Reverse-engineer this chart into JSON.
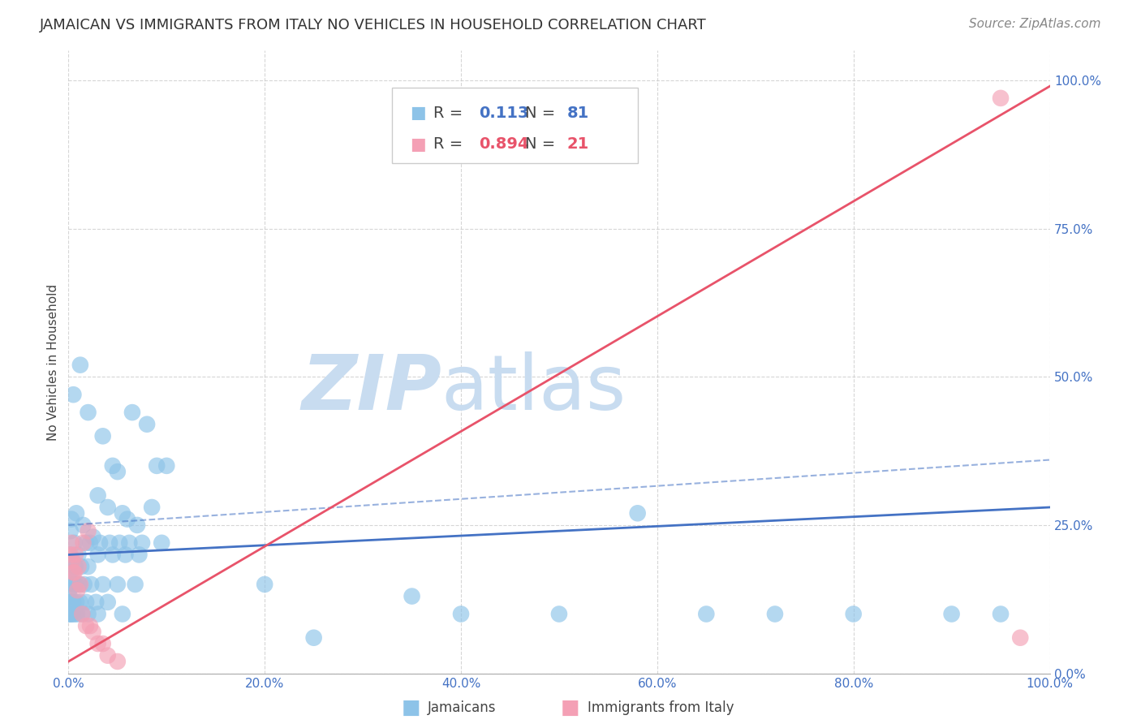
{
  "title": "JAMAICAN VS IMMIGRANTS FROM ITALY NO VEHICLES IN HOUSEHOLD CORRELATION CHART",
  "source": "Source: ZipAtlas.com",
  "ylabel": "No Vehicles in Household",
  "ytick_labels": [
    "0.0%",
    "25.0%",
    "50.0%",
    "75.0%",
    "100.0%"
  ],
  "ytick_values": [
    0,
    25,
    50,
    75,
    100
  ],
  "xtick_values": [
    0,
    20,
    40,
    60,
    80,
    100
  ],
  "xtick_labels": [
    "0.0%",
    "20.0%",
    "40.0%",
    "60.0%",
    "80.0%",
    "100.0%"
  ],
  "legend_v1": "0.113",
  "legend_v2": "0.894",
  "legend_n1": "81",
  "legend_n2": "21",
  "blue_color": "#8DC3E8",
  "blue_line_color": "#4472C4",
  "pink_color": "#F4A0B5",
  "pink_line_color": "#E8536A",
  "tick_color": "#4472C4",
  "watermark_color": "#C8DCF0",
  "title_fontsize": 13,
  "source_fontsize": 11,
  "axis_label_fontsize": 11,
  "tick_fontsize": 11,
  "legend_fontsize": 14,
  "background_color": "#FFFFFF",
  "grid_color": "#CCCCCC",
  "blue_scatter_x": [
    0.5,
    1.2,
    2.0,
    3.5,
    4.5,
    5.0,
    6.5,
    8.0,
    9.0,
    10.0,
    0.3,
    0.8,
    1.5,
    2.5,
    3.0,
    4.0,
    5.5,
    6.0,
    7.0,
    8.5,
    0.2,
    0.6,
    1.0,
    1.8,
    2.2,
    3.2,
    4.2,
    5.2,
    6.2,
    7.5,
    0.1,
    0.4,
    0.7,
    1.3,
    2.0,
    3.0,
    4.5,
    5.8,
    7.2,
    9.5,
    0.15,
    0.35,
    0.55,
    0.75,
    1.1,
    1.6,
    2.3,
    3.5,
    5.0,
    6.8,
    0.05,
    0.1,
    0.2,
    0.3,
    0.5,
    0.8,
    1.2,
    1.8,
    2.8,
    4.0,
    0.08,
    0.18,
    0.28,
    0.45,
    0.65,
    0.9,
    1.4,
    2.0,
    3.0,
    5.5,
    20.0,
    25.0,
    35.0,
    40.0,
    50.0,
    58.0,
    65.0,
    72.0,
    80.0,
    90.0,
    95.0
  ],
  "blue_scatter_y": [
    47.0,
    52.0,
    44.0,
    40.0,
    35.0,
    34.0,
    44.0,
    42.0,
    35.0,
    35.0,
    26.0,
    27.0,
    25.0,
    23.0,
    30.0,
    28.0,
    27.0,
    26.0,
    25.0,
    28.0,
    24.0,
    22.0,
    20.0,
    22.0,
    22.0,
    22.0,
    22.0,
    22.0,
    22.0,
    22.0,
    20.0,
    19.0,
    18.0,
    18.0,
    18.0,
    20.0,
    20.0,
    20.0,
    20.0,
    22.0,
    17.0,
    16.0,
    15.0,
    15.0,
    15.0,
    15.0,
    15.0,
    15.0,
    15.0,
    15.0,
    14.0,
    13.0,
    12.0,
    12.0,
    12.0,
    12.0,
    12.0,
    12.0,
    12.0,
    12.0,
    10.0,
    10.0,
    10.0,
    10.0,
    10.0,
    10.0,
    10.0,
    10.0,
    10.0,
    10.0,
    15.0,
    6.0,
    13.0,
    10.0,
    10.0,
    27.0,
    10.0,
    10.0,
    10.0,
    10.0,
    10.0
  ],
  "pink_scatter_x": [
    0.3,
    0.7,
    1.0,
    1.5,
    2.0,
    2.5,
    3.0,
    0.5,
    1.2,
    1.8,
    0.2,
    0.4,
    0.6,
    0.9,
    1.4,
    2.2,
    3.5,
    4.0,
    5.0,
    95.0,
    97.0
  ],
  "pink_scatter_y": [
    22.0,
    20.0,
    18.0,
    22.0,
    24.0,
    7.0,
    5.0,
    17.0,
    15.0,
    8.0,
    20.0,
    19.0,
    17.0,
    14.0,
    10.0,
    8.0,
    5.0,
    3.0,
    2.0,
    97.0,
    6.0
  ],
  "blue_reg_start_y": 20.0,
  "blue_reg_end_y": 28.0,
  "blue_dash_start_y": 25.0,
  "blue_dash_end_y": 36.0,
  "pink_reg_start_y": 2.0,
  "pink_reg_end_y": 99.0
}
